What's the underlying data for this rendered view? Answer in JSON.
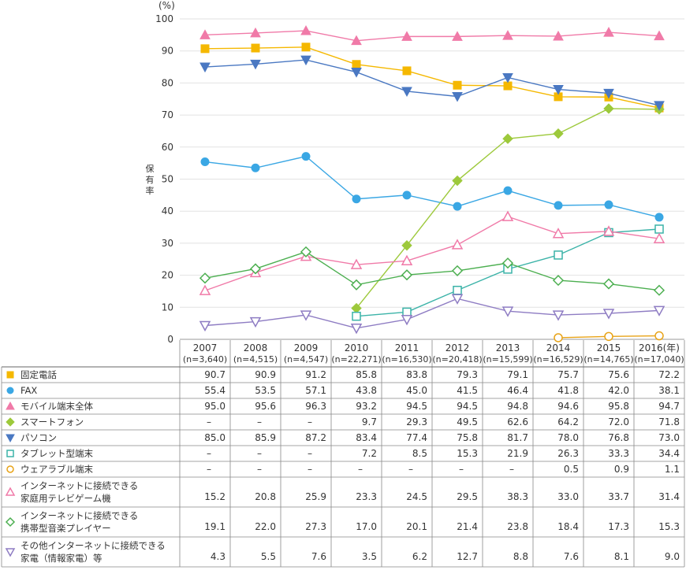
{
  "chart_data": {
    "type": "line",
    "unit": "(%)",
    "ylabel": "保有率",
    "ylim": [
      0,
      100
    ],
    "yticks": [
      0,
      10,
      20,
      30,
      40,
      50,
      60,
      70,
      80,
      90,
      100
    ],
    "year_suffix": "(年)",
    "categories": [
      {
        "year": "2007",
        "n": "(n=3,640)"
      },
      {
        "year": "2008",
        "n": "(n=4,515)"
      },
      {
        "year": "2009",
        "n": "(n=4,547)"
      },
      {
        "year": "2010",
        "n": "(n=22,271)"
      },
      {
        "year": "2011",
        "n": "(n=16,530)"
      },
      {
        "year": "2012",
        "n": "(n=20,418)"
      },
      {
        "year": "2013",
        "n": "(n=15,599)"
      },
      {
        "year": "2014",
        "n": "(n=16,529)"
      },
      {
        "year": "2015",
        "n": "(n=14,765)"
      },
      {
        "year": "2016",
        "n": "(n=17,040)"
      }
    ],
    "series": [
      {
        "name": [
          "固定電話"
        ],
        "color": "#f5b800",
        "marker": "square-filled",
        "values": [
          90.7,
          90.9,
          91.2,
          85.8,
          83.8,
          79.3,
          79.1,
          75.7,
          75.6,
          72.2
        ]
      },
      {
        "name": [
          "FAX"
        ],
        "color": "#3aa7e4",
        "marker": "circle-filled",
        "values": [
          55.4,
          53.5,
          57.1,
          43.8,
          45.0,
          41.5,
          46.4,
          41.8,
          42.0,
          38.1
        ]
      },
      {
        "name": [
          "モバイル端末全体"
        ],
        "color": "#f07aa8",
        "marker": "triangle-up-filled",
        "values": [
          95.0,
          95.6,
          96.3,
          93.2,
          94.5,
          94.5,
          94.8,
          94.6,
          95.8,
          94.7
        ]
      },
      {
        "name": [
          "スマートフォン"
        ],
        "color": "#9dc93b",
        "marker": "diamond-filled",
        "values": [
          null,
          null,
          null,
          9.7,
          29.3,
          49.5,
          62.6,
          64.2,
          72.0,
          71.8
        ]
      },
      {
        "name": [
          "パソコン"
        ],
        "color": "#4a78c2",
        "marker": "triangle-down-filled",
        "values": [
          85.0,
          85.9,
          87.2,
          83.4,
          77.4,
          75.8,
          81.7,
          78.0,
          76.8,
          73.0
        ]
      },
      {
        "name": [
          "タブレット型端末"
        ],
        "color": "#3bb3a8",
        "marker": "square-open",
        "values": [
          null,
          null,
          null,
          7.2,
          8.5,
          15.3,
          21.9,
          26.3,
          33.3,
          34.4
        ]
      },
      {
        "name": [
          "ウェアラブル端末"
        ],
        "color": "#e8a317",
        "marker": "circle-open",
        "values": [
          null,
          null,
          null,
          null,
          null,
          null,
          null,
          0.5,
          0.9,
          1.1
        ]
      },
      {
        "name": [
          "インターネットに接続できる",
          "家庭用テレビゲーム機"
        ],
        "color": "#f07aa8",
        "marker": "triangle-up-open",
        "values": [
          15.2,
          20.8,
          25.9,
          23.3,
          24.5,
          29.5,
          38.3,
          33.0,
          33.7,
          31.4
        ]
      },
      {
        "name": [
          "インターネットに接続できる",
          "携帯型音楽プレイヤー"
        ],
        "color": "#4caf50",
        "marker": "diamond-open",
        "values": [
          19.1,
          22.0,
          27.3,
          17.0,
          20.1,
          21.4,
          23.8,
          18.4,
          17.3,
          15.3
        ]
      },
      {
        "name": [
          "その他インターネットに接続できる",
          "家電（情報家電）等"
        ],
        "color": "#8e7cc3",
        "marker": "triangle-down-open",
        "values": [
          4.3,
          5.5,
          7.6,
          3.5,
          6.2,
          12.7,
          8.8,
          7.6,
          8.1,
          9.0
        ]
      }
    ]
  },
  "dash": "–"
}
